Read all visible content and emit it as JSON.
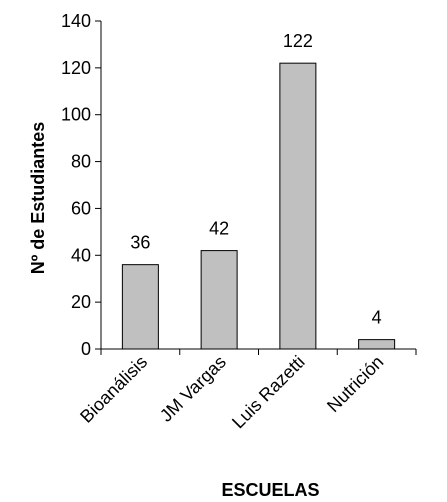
{
  "chart_data": {
    "type": "bar",
    "title": "",
    "xlabel": "ESCUELAS",
    "ylabel": "Nº de Estudiantes",
    "categories": [
      "Bioanálisis",
      "JM Vargas",
      "Luis Razetti",
      "Nutrición"
    ],
    "values": [
      36,
      42,
      122,
      4
    ],
    "data_labels": [
      "36",
      "42",
      "122",
      "4"
    ],
    "ylim": [
      0,
      140
    ],
    "yticks": [
      "0",
      "20",
      "40",
      "60",
      "80",
      "100",
      "120",
      "140"
    ],
    "grid": false,
    "legend": "none",
    "colors": {
      "bar_fill": "#c0c0c0",
      "bar_stroke": "#000000",
      "axis": "#000000",
      "text": "#000000"
    }
  }
}
